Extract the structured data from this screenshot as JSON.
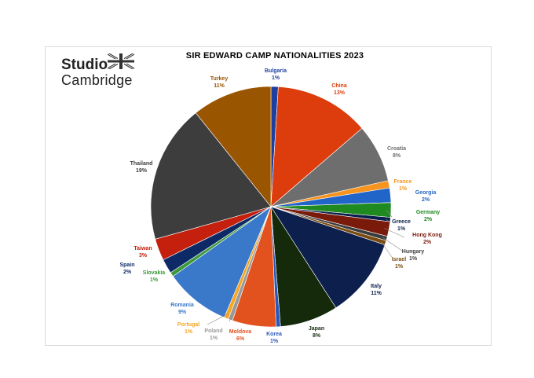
{
  "logo": {
    "line1": "Studio",
    "line2": "Cambridge"
  },
  "chart_data": {
    "type": "pie",
    "title": "SIR EDWARD CAMP NATIONALITIES 2023",
    "start_angle_deg": 0,
    "direction": "clockwise",
    "slices": [
      {
        "name": "Bulgaria",
        "label": "1%",
        "value": 1,
        "color": "#1f3fa0"
      },
      {
        "name": "China",
        "label": "13%",
        "value": 13,
        "color": "#dd3c0c"
      },
      {
        "name": "Croatia",
        "label": "8%",
        "value": 8,
        "color": "#6e6e6e"
      },
      {
        "name": "France",
        "label": "1%",
        "value": 1,
        "color": "#f7941d"
      },
      {
        "name": "Georgia",
        "label": "2%",
        "value": 2,
        "color": "#2265c8"
      },
      {
        "name": "Germany",
        "label": "2%",
        "value": 2,
        "color": "#1f8a1f"
      },
      {
        "name": "Greece",
        "label": "1%",
        "value": 0.6,
        "color": "#0b1f4d"
      },
      {
        "name": "Hong Kong",
        "label": "2%",
        "value": 2,
        "color": "#7a1a0a"
      },
      {
        "name": "Hungary",
        "label": "1%",
        "value": 0.6,
        "color": "#3b3b3b"
      },
      {
        "name": "Israel",
        "label": "1%",
        "value": 0.6,
        "color": "#7a4a10"
      },
      {
        "name": "Italy",
        "label": "11%",
        "value": 11,
        "color": "#0c1f4d"
      },
      {
        "name": "Japan",
        "label": "8%",
        "value": 8,
        "color": "#142a0b"
      },
      {
        "name": "Korea",
        "label": "1%",
        "value": 0.6,
        "color": "#2a57b8"
      },
      {
        "name": "Moldova",
        "label": "6%",
        "value": 6,
        "color": "#e2521e"
      },
      {
        "name": "Poland",
        "label": "1%",
        "value": 0.6,
        "color": "#9a9a9a"
      },
      {
        "name": "Portugal",
        "label": "1%",
        "value": 0.6,
        "color": "#f5a623"
      },
      {
        "name": "Romania",
        "label": "9%",
        "value": 9,
        "color": "#3a78c9"
      },
      {
        "name": "Slovakia",
        "label": "1%",
        "value": 0.6,
        "color": "#3c9a3c"
      },
      {
        "name": "Spain",
        "label": "2%",
        "value": 2,
        "color": "#0e2a66"
      },
      {
        "name": "Taiwan",
        "label": "3%",
        "value": 3,
        "color": "#c4200d"
      },
      {
        "name": "Thailand",
        "label": "19%",
        "value": 19,
        "color": "#3d3d3d"
      },
      {
        "name": "Turkey",
        "label": "11%",
        "value": 11,
        "color": "#9a5500"
      }
    ]
  }
}
